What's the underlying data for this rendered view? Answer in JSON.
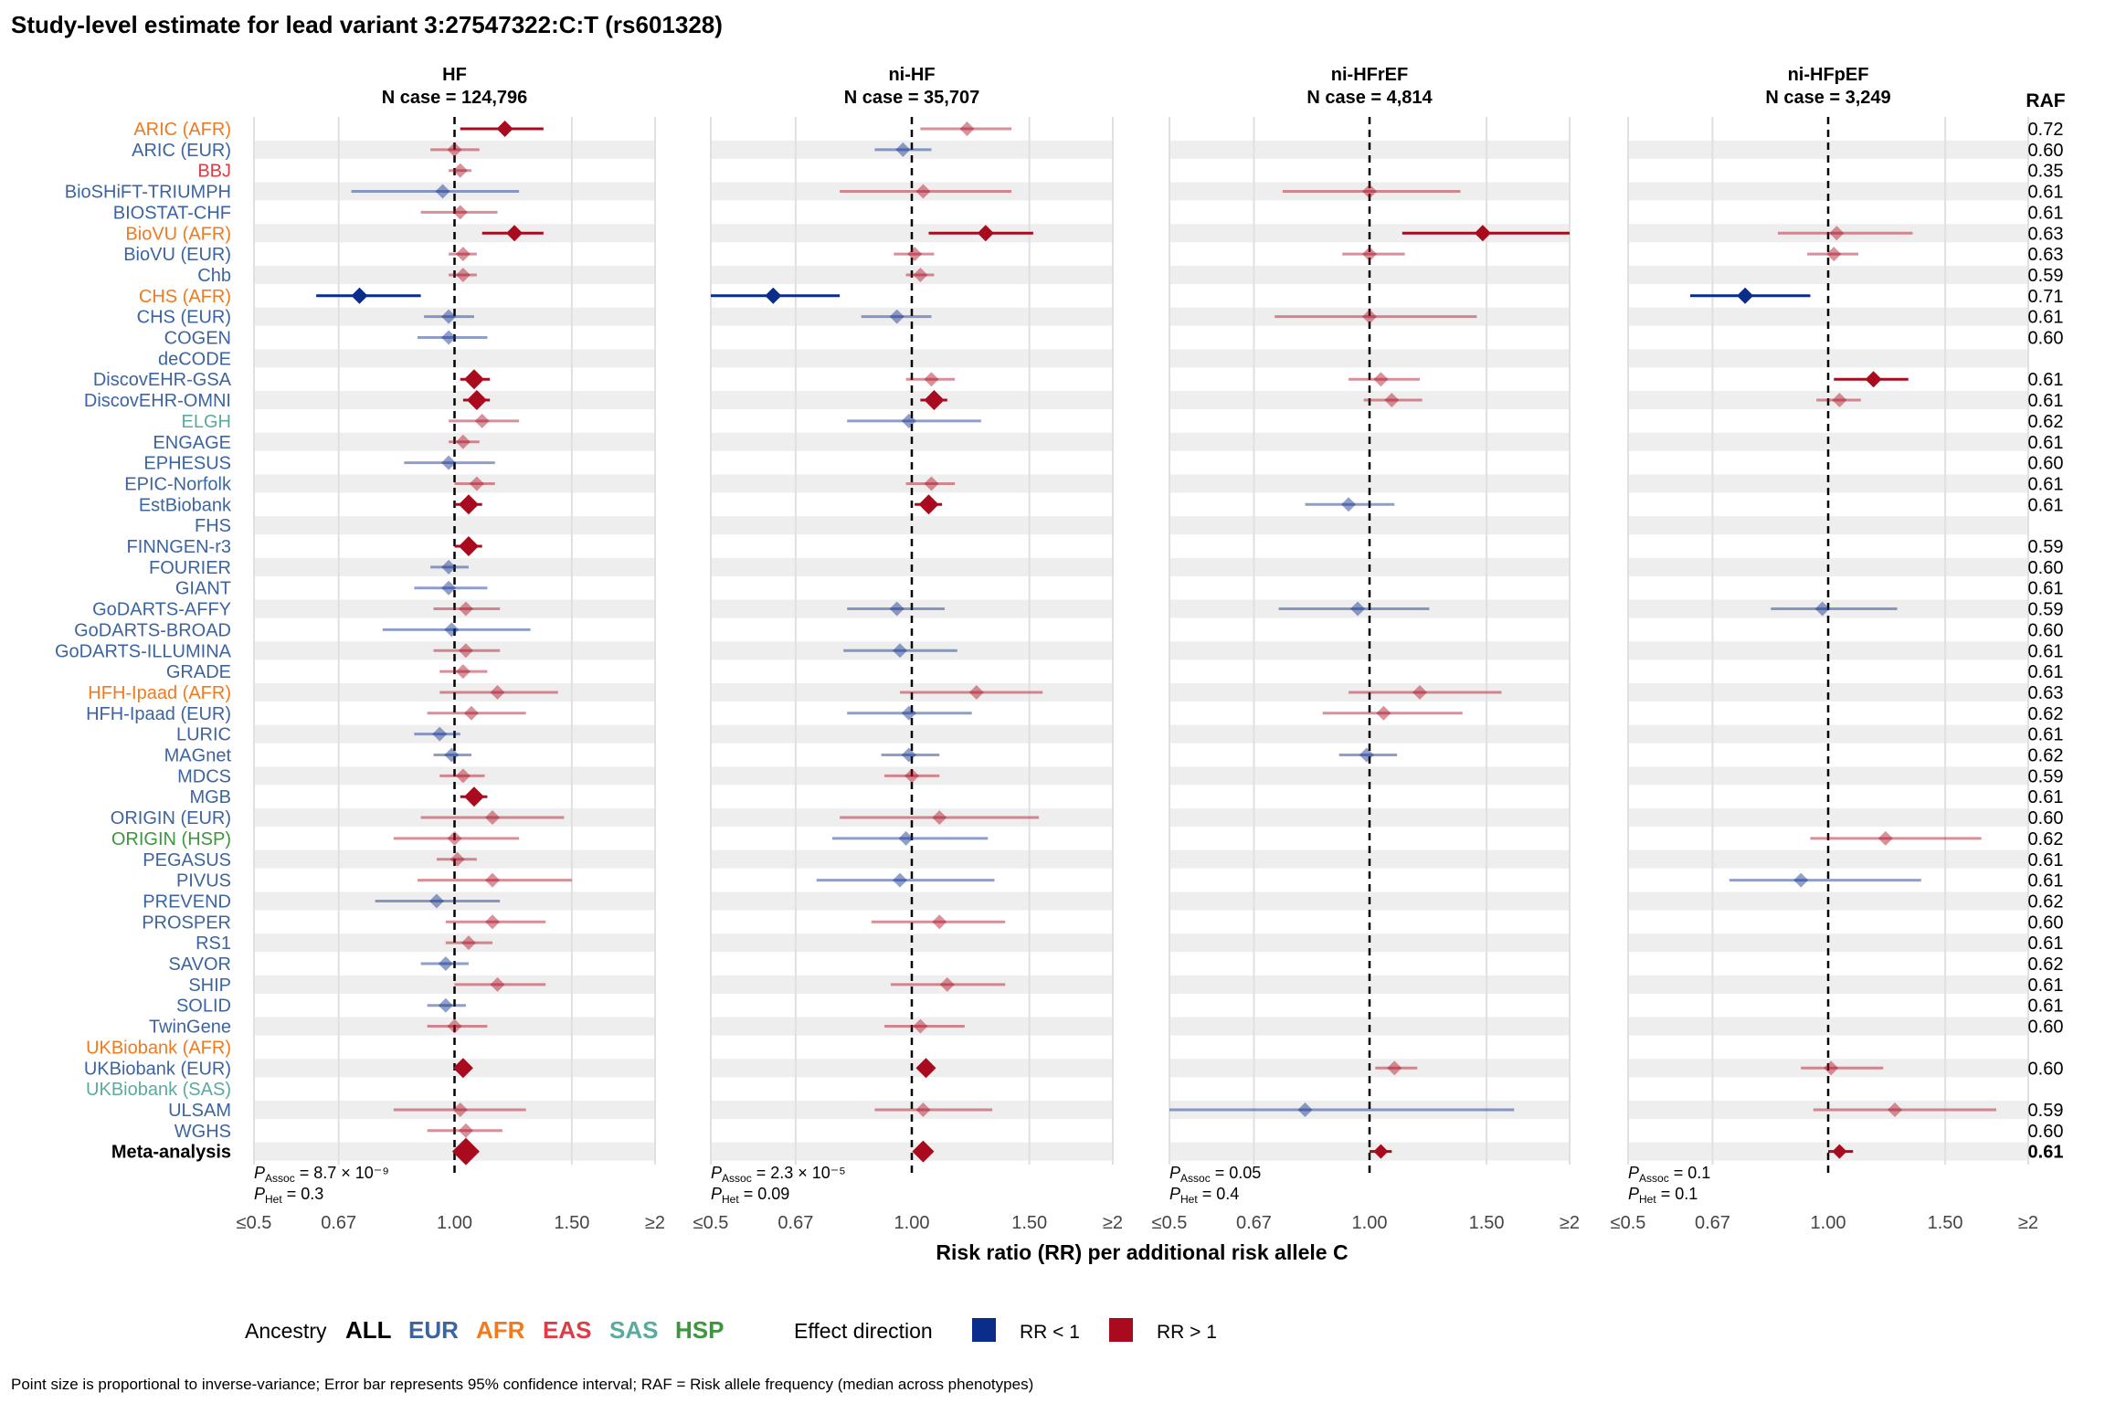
{
  "title": "Study-level estimate for lead variant 3:27547322:C:T (rs601328)",
  "x_axis_label": "Risk ratio (RR) per additional risk allele C",
  "raf_header": "RAF",
  "tick_labels": [
    "≤0.5",
    "0.67",
    "1.00",
    "1.50",
    "≥2"
  ],
  "legend": {
    "ancestry_title": "Ancestry",
    "ancestry_items": [
      {
        "label": "ALL",
        "color": "#000000"
      },
      {
        "label": "EUR",
        "color": "#3C64A0"
      },
      {
        "label": "AFR",
        "color": "#F07A20"
      },
      {
        "label": "EAS",
        "color": "#DC3C46"
      },
      {
        "label": "SAS",
        "color": "#5AAAA0"
      },
      {
        "label": "HSP",
        "color": "#3C963C"
      }
    ],
    "effect_title": "Effect direction",
    "effect_items": [
      {
        "label": "RR < 1",
        "color": "#0A2D8C"
      },
      {
        "label": "RR > 1",
        "color": "#AA0A1E"
      }
    ]
  },
  "footnote": "Point size is proportional to inverse-variance; Error bar represents 95% confidence interval; RAF = Risk allele frequency (median across phenotypes)",
  "colors": {
    "low": "#0A2D8C",
    "high": "#AA0A1E",
    "stripe": "#EEEEEE",
    "grid": "#E0E0E0"
  },
  "chart_data": {
    "type": "forest",
    "x_scale": "log",
    "xlim": [
      0.5,
      2
    ],
    "x_ticks": [
      0.5,
      0.67,
      1.0,
      1.5,
      2
    ],
    "reference_line": 1.0,
    "panels": [
      {
        "name": "HF",
        "n_case": "N case = 124,796",
        "p_assoc": "8.7 × 10⁻⁹",
        "p_het": "0.3"
      },
      {
        "name": "ni-HF",
        "n_case": "N case = 35,707",
        "p_assoc": "2.3 × 10⁻⁵",
        "p_het": "0.09"
      },
      {
        "name": "ni-HFrEF",
        "n_case": "N case = 4,814",
        "p_assoc": "0.05",
        "p_het": "0.4"
      },
      {
        "name": "ni-HFpEF",
        "n_case": "N case = 3,249",
        "p_assoc": "0.1",
        "p_het": "0.1"
      }
    ],
    "studies": [
      {
        "name": "ARIC (AFR)",
        "ancestry": "AFR",
        "raf": "0.72",
        "est": [
          [
            1.19,
            1.02,
            1.36,
            1
          ],
          [
            1.21,
            1.03,
            1.41,
            0
          ],
          null,
          null
        ]
      },
      {
        "name": "ARIC (EUR)",
        "ancestry": "EUR",
        "raf": "0.60",
        "est": [
          [
            1.0,
            0.92,
            1.09,
            0
          ],
          [
            0.97,
            0.88,
            1.07,
            0
          ],
          null,
          null
        ]
      },
      {
        "name": "BBJ",
        "ancestry": "EAS",
        "raf": "0.35",
        "est": [
          [
            1.02,
            0.98,
            1.06,
            0
          ],
          null,
          null,
          null
        ]
      },
      {
        "name": "BioSHiFT-TRIUMPH",
        "ancestry": "EUR",
        "raf": "0.61",
        "est": [
          [
            0.96,
            0.7,
            1.25,
            0
          ],
          [
            1.04,
            0.78,
            1.41,
            0
          ],
          [
            1.0,
            0.74,
            1.37,
            0
          ],
          null
        ]
      },
      {
        "name": "BIOSTAT-CHF",
        "ancestry": "EUR",
        "raf": "0.61",
        "est": [
          [
            1.02,
            0.89,
            1.16,
            0
          ],
          null,
          null,
          null
        ]
      },
      {
        "name": "BioVU (AFR)",
        "ancestry": "AFR",
        "raf": "0.63",
        "est": [
          [
            1.23,
            1.1,
            1.36,
            1
          ],
          [
            1.29,
            1.06,
            1.52,
            1
          ],
          [
            1.48,
            1.12,
            2.0,
            1
          ],
          [
            1.03,
            0.84,
            1.34,
            0
          ]
        ]
      },
      {
        "name": "BioVU (EUR)",
        "ancestry": "EUR",
        "raf": "0.63",
        "est": [
          [
            1.03,
            0.98,
            1.08,
            0
          ],
          [
            1.01,
            0.94,
            1.08,
            0
          ],
          [
            1.0,
            0.91,
            1.13,
            0
          ],
          [
            1.02,
            0.93,
            1.11,
            0
          ]
        ]
      },
      {
        "name": "Chb",
        "ancestry": "EUR",
        "raf": "0.59",
        "est": [
          [
            1.03,
            0.98,
            1.08,
            0
          ],
          [
            1.03,
            0.98,
            1.08,
            0
          ],
          null,
          null
        ]
      },
      {
        "name": "CHS (AFR)",
        "ancestry": "AFR",
        "raf": "0.71",
        "est": [
          [
            0.72,
            0.62,
            0.89,
            1
          ],
          [
            0.62,
            0.5,
            0.78,
            1
          ],
          null,
          [
            0.75,
            0.62,
            0.94,
            1
          ]
        ]
      },
      {
        "name": "CHS (EUR)",
        "ancestry": "EUR",
        "raf": "0.61",
        "est": [
          [
            0.98,
            0.9,
            1.07,
            0
          ],
          [
            0.95,
            0.84,
            1.07,
            0
          ],
          [
            1.0,
            0.72,
            1.45,
            0
          ],
          null
        ]
      },
      {
        "name": "COGEN",
        "ancestry": "EUR",
        "raf": "0.60",
        "est": [
          [
            0.98,
            0.88,
            1.12,
            0
          ],
          null,
          null,
          null
        ]
      },
      {
        "name": "deCODE",
        "ancestry": "EUR",
        "raf": "",
        "est": [
          null,
          null,
          null,
          null
        ]
      },
      {
        "name": "DiscovEHR-GSA",
        "ancestry": "EUR",
        "raf": "0.61",
        "est": [
          [
            1.07,
            1.02,
            1.13,
            1
          ],
          [
            1.07,
            0.98,
            1.16,
            0
          ],
          [
            1.04,
            0.93,
            1.19,
            0
          ],
          [
            1.17,
            1.02,
            1.32,
            1
          ]
        ]
      },
      {
        "name": "DiscovEHR-OMNI",
        "ancestry": "EUR",
        "raf": "0.61",
        "est": [
          [
            1.08,
            1.03,
            1.13,
            1
          ],
          [
            1.08,
            1.03,
            1.13,
            1
          ],
          [
            1.08,
            0.98,
            1.2,
            0
          ],
          [
            1.04,
            0.96,
            1.12,
            0
          ]
        ]
      },
      {
        "name": "ELGH",
        "ancestry": "SAS",
        "raf": "0.62",
        "est": [
          [
            1.1,
            0.98,
            1.25,
            0
          ],
          [
            0.99,
            0.8,
            1.27,
            0
          ],
          null,
          null
        ]
      },
      {
        "name": "ENGAGE",
        "ancestry": "EUR",
        "raf": "0.61",
        "est": [
          [
            1.03,
            0.98,
            1.09,
            0
          ],
          null,
          null,
          null
        ]
      },
      {
        "name": "EPHESUS",
        "ancestry": "EUR",
        "raf": "0.60",
        "est": [
          [
            0.98,
            0.84,
            1.15,
            0
          ],
          null,
          null,
          null
        ]
      },
      {
        "name": "EPIC-Norfolk",
        "ancestry": "EUR",
        "raf": "0.61",
        "est": [
          [
            1.08,
            1.0,
            1.15,
            0
          ],
          [
            1.07,
            0.98,
            1.16,
            0
          ],
          null,
          null
        ]
      },
      {
        "name": "EstBiobank",
        "ancestry": "EUR",
        "raf": "0.61",
        "est": [
          [
            1.05,
            1.0,
            1.1,
            1
          ],
          [
            1.06,
            1.01,
            1.11,
            1
          ],
          [
            0.93,
            0.8,
            1.09,
            0
          ],
          null
        ]
      },
      {
        "name": "FHS",
        "ancestry": "EUR",
        "raf": "",
        "est": [
          null,
          null,
          null,
          null
        ]
      },
      {
        "name": "FINNGEN-r3",
        "ancestry": "EUR",
        "raf": "0.59",
        "est": [
          [
            1.05,
            1.0,
            1.1,
            1
          ],
          null,
          null,
          null
        ]
      },
      {
        "name": "FOURIER",
        "ancestry": "EUR",
        "raf": "0.60",
        "est": [
          [
            0.98,
            0.92,
            1.05,
            0
          ],
          null,
          null,
          null
        ]
      },
      {
        "name": "GIANT",
        "ancestry": "EUR",
        "raf": "0.61",
        "est": [
          [
            0.98,
            0.87,
            1.12,
            0
          ],
          null,
          null,
          null
        ]
      },
      {
        "name": "GoDARTS-AFFY",
        "ancestry": "EUR",
        "raf": "0.59",
        "est": [
          [
            1.04,
            0.93,
            1.17,
            0
          ],
          [
            0.95,
            0.8,
            1.12,
            0
          ],
          [
            0.96,
            0.73,
            1.23,
            0
          ],
          [
            0.98,
            0.82,
            1.27,
            0
          ]
        ]
      },
      {
        "name": "GoDARTS-BROAD",
        "ancestry": "EUR",
        "raf": "0.60",
        "est": [
          [
            0.99,
            0.78,
            1.3,
            0
          ],
          null,
          null,
          null
        ]
      },
      {
        "name": "GoDARTS-ILLUMINA",
        "ancestry": "EUR",
        "raf": "0.61",
        "est": [
          [
            1.04,
            0.93,
            1.17,
            0
          ],
          [
            0.96,
            0.79,
            1.17,
            0
          ],
          null,
          null
        ]
      },
      {
        "name": "GRADE",
        "ancestry": "EUR",
        "raf": "0.61",
        "est": [
          [
            1.03,
            0.95,
            1.12,
            0
          ],
          null,
          null,
          null
        ]
      },
      {
        "name": "HFH-Ipaad (AFR)",
        "ancestry": "AFR",
        "raf": "0.63",
        "est": [
          [
            1.16,
            0.95,
            1.43,
            0
          ],
          [
            1.25,
            0.96,
            1.57,
            0
          ],
          [
            1.19,
            0.93,
            1.58,
            0
          ],
          null
        ]
      },
      {
        "name": "HFH-Ipaad (EUR)",
        "ancestry": "EUR",
        "raf": "0.62",
        "est": [
          [
            1.06,
            0.91,
            1.28,
            0
          ],
          [
            0.99,
            0.8,
            1.23,
            0
          ],
          [
            1.05,
            0.85,
            1.38,
            0
          ],
          null
        ]
      },
      {
        "name": "LURIC",
        "ancestry": "EUR",
        "raf": "0.61",
        "est": [
          [
            0.95,
            0.87,
            1.02,
            0
          ],
          null,
          null,
          null
        ]
      },
      {
        "name": "MAGnet",
        "ancestry": "EUR",
        "raf": "0.62",
        "est": [
          [
            0.99,
            0.93,
            1.06,
            0
          ],
          [
            0.99,
            0.9,
            1.1,
            0
          ],
          [
            0.99,
            0.9,
            1.1,
            0
          ],
          null
        ]
      },
      {
        "name": "MDCS",
        "ancestry": "EUR",
        "raf": "0.59",
        "est": [
          [
            1.03,
            0.95,
            1.11,
            0
          ],
          [
            1.0,
            0.91,
            1.1,
            0
          ],
          null,
          null
        ]
      },
      {
        "name": "MGB",
        "ancestry": "EUR",
        "raf": "0.61",
        "est": [
          [
            1.07,
            1.02,
            1.12,
            1
          ],
          null,
          null,
          null
        ]
      },
      {
        "name": "ORIGIN (EUR)",
        "ancestry": "EUR",
        "raf": "0.60",
        "est": [
          [
            1.14,
            0.89,
            1.46,
            0
          ],
          [
            1.1,
            0.78,
            1.55,
            0
          ],
          null,
          null
        ]
      },
      {
        "name": "ORIGIN (HSP)",
        "ancestry": "HSP",
        "raf": "0.62",
        "est": [
          [
            1.0,
            0.81,
            1.25,
            0
          ],
          [
            0.98,
            0.76,
            1.3,
            0
          ],
          null,
          [
            1.22,
            0.94,
            1.7,
            0
          ]
        ]
      },
      {
        "name": "PEGASUS",
        "ancestry": "EUR",
        "raf": "0.61",
        "est": [
          [
            1.01,
            0.94,
            1.08,
            0
          ],
          null,
          null,
          null
        ]
      },
      {
        "name": "PIVUS",
        "ancestry": "EUR",
        "raf": "0.61",
        "est": [
          [
            1.14,
            0.88,
            1.5,
            0
          ],
          [
            0.96,
            0.72,
            1.33,
            0
          ],
          null,
          [
            0.91,
            0.71,
            1.38,
            0
          ]
        ]
      },
      {
        "name": "PREVEND",
        "ancestry": "EUR",
        "raf": "0.62",
        "est": [
          [
            0.94,
            0.76,
            1.17,
            0
          ],
          null,
          null,
          null
        ]
      },
      {
        "name": "PROSPER",
        "ancestry": "EUR",
        "raf": "0.60",
        "est": [
          [
            1.14,
            0.97,
            1.37,
            0
          ],
          [
            1.1,
            0.87,
            1.38,
            0
          ],
          null,
          null
        ]
      },
      {
        "name": "RS1",
        "ancestry": "EUR",
        "raf": "0.61",
        "est": [
          [
            1.05,
            0.97,
            1.14,
            0
          ],
          null,
          null,
          null
        ]
      },
      {
        "name": "SAVOR",
        "ancestry": "EUR",
        "raf": "0.62",
        "est": [
          [
            0.97,
            0.89,
            1.05,
            0
          ],
          null,
          null,
          null
        ]
      },
      {
        "name": "SHIP",
        "ancestry": "EUR",
        "raf": "0.61",
        "est": [
          [
            1.16,
            1.0,
            1.37,
            0
          ],
          [
            1.13,
            0.93,
            1.38,
            0
          ],
          null,
          null
        ]
      },
      {
        "name": "SOLID",
        "ancestry": "EUR",
        "raf": "0.61",
        "est": [
          [
            0.97,
            0.91,
            1.04,
            0
          ],
          null,
          null,
          null
        ]
      },
      {
        "name": "TwinGene",
        "ancestry": "EUR",
        "raf": "0.60",
        "est": [
          [
            1.0,
            0.91,
            1.12,
            0
          ],
          [
            1.03,
            0.91,
            1.2,
            0
          ],
          null,
          null
        ]
      },
      {
        "name": "UKBiobank (AFR)",
        "ancestry": "AFR",
        "raf": "",
        "est": [
          null,
          null,
          null,
          null
        ]
      },
      {
        "name": "UKBiobank (EUR)",
        "ancestry": "EUR",
        "raf": "0.60",
        "est": [
          [
            1.03,
            1.0,
            1.06,
            1
          ],
          [
            1.05,
            1.02,
            1.08,
            1
          ],
          [
            1.09,
            1.02,
            1.18,
            0
          ],
          [
            1.01,
            0.91,
            1.21,
            0
          ]
        ]
      },
      {
        "name": "UKBiobank (SAS)",
        "ancestry": "SAS",
        "raf": "",
        "est": [
          null,
          null,
          null,
          null
        ]
      },
      {
        "name": "ULSAM",
        "ancestry": "EUR",
        "raf": "0.59",
        "est": [
          [
            1.02,
            0.81,
            1.28,
            0
          ],
          [
            1.04,
            0.88,
            1.32,
            0
          ],
          [
            0.8,
            0.5,
            1.65,
            0
          ],
          [
            1.26,
            0.95,
            1.79,
            0
          ]
        ]
      },
      {
        "name": "WGHS",
        "ancestry": "EUR",
        "raf": "0.60",
        "est": [
          [
            1.04,
            0.91,
            1.18,
            0
          ],
          null,
          null,
          null
        ]
      },
      {
        "name": "Meta-analysis",
        "ancestry": "ALL",
        "raf": "0.61",
        "meta": true,
        "est": [
          [
            1.04,
            1.03,
            1.06,
            1
          ],
          [
            1.04,
            1.02,
            1.06,
            1
          ],
          [
            1.04,
            1.0,
            1.08,
            1
          ],
          [
            1.04,
            1.0,
            1.09,
            1
          ]
        ]
      }
    ]
  }
}
